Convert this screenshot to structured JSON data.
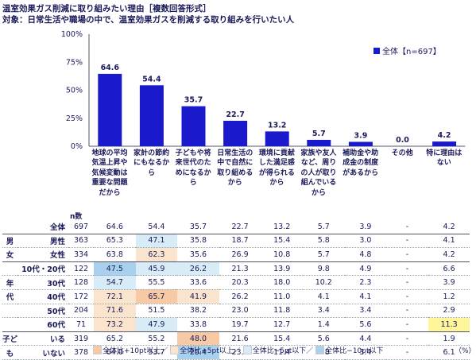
{
  "header": {
    "title": "温室効果ガス削減に取り組みたい理由［複数回答形式］",
    "target": "対象：日常生活や職場の中で、温室効果ガスを削減する取り組みを行いたい人"
  },
  "chart_data": {
    "type": "bar",
    "categories": [
      "地球の平均気温上昇や気候変動は重要な問題だから",
      "家計の節約にもなるから",
      "子どもや将来世代のためになるから",
      "日常生活の中で自然に取り組めるから",
      "環境に貢献した満足感が得られるから",
      "家族や友人など、周りの人が取り組んでいるから",
      "補助金や助成金の制度があるから",
      "その他",
      "特に理由はない"
    ],
    "series": [
      {
        "name": "全体【n=697】",
        "values": [
          64.6,
          54.4,
          35.7,
          22.7,
          13.2,
          5.7,
          3.9,
          0.0,
          4.2
        ]
      }
    ],
    "value_labels": [
      "64.6",
      "54.4",
      "35.7",
      "22.7",
      "13.2",
      "5.7",
      "3.9",
      "0.0",
      "4.2"
    ],
    "yticks": [
      "0%",
      "25%",
      "50%",
      "75%",
      "100%"
    ],
    "ylim": [
      0,
      100
    ],
    "bar_color": "#1a1acc"
  },
  "table": {
    "n_header": "n数",
    "rows": [
      {
        "group": "",
        "sub": "全体",
        "n": "697",
        "vals": [
          "64.6",
          "54.4",
          "35.7",
          "22.7",
          "13.2",
          "5.7",
          "3.9",
          "-",
          "4.2"
        ],
        "hl": [
          "",
          "",
          "",
          "",
          "",
          "",
          "",
          "",
          ""
        ],
        "band": true
      },
      {
        "group": "男",
        "sub": "男性",
        "n": "363",
        "vals": [
          "65.3",
          "47.1",
          "35.8",
          "18.7",
          "15.4",
          "5.8",
          "3.0",
          "-",
          "4.1"
        ],
        "hl": [
          "",
          "lo5",
          "",
          "",
          "",
          "",
          "",
          "",
          ""
        ],
        "band": false
      },
      {
        "group": "女",
        "sub": "女性",
        "n": "334",
        "vals": [
          "63.8",
          "62.3",
          "35.6",
          "26.9",
          "10.8",
          "5.7",
          "4.8",
          "-",
          "4.2"
        ],
        "hl": [
          "",
          "hi5",
          "",
          "",
          "",
          "",
          "",
          "",
          ""
        ],
        "band": true
      },
      {
        "group": "",
        "sub": "10代・20代",
        "n": "122",
        "vals": [
          "47.5",
          "45.9",
          "26.2",
          "21.3",
          "13.9",
          "9.8",
          "4.9",
          "-",
          "6.6"
        ],
        "hl": [
          "lo10",
          "lo5",
          "lo5",
          "",
          "",
          "",
          "",
          "",
          ""
        ],
        "band": false
      },
      {
        "group": "年",
        "sub": "30代",
        "n": "128",
        "vals": [
          "54.7",
          "55.5",
          "33.6",
          "20.3",
          "18.0",
          "10.2",
          "2.3",
          "-",
          "3.9"
        ],
        "hl": [
          "lo5",
          "",
          "",
          "",
          "",
          "",
          "",
          "",
          ""
        ],
        "band": false
      },
      {
        "group": "代",
        "sub": "40代",
        "n": "172",
        "vals": [
          "72.1",
          "65.7",
          "41.9",
          "26.2",
          "11.0",
          "4.1",
          "4.1",
          "-",
          "1.2"
        ],
        "hl": [
          "hi5",
          "hi10",
          "hi5",
          "",
          "",
          "",
          "",
          "",
          ""
        ],
        "band": false
      },
      {
        "group": "",
        "sub": "50代",
        "n": "204",
        "vals": [
          "71.6",
          "51.5",
          "38.2",
          "23.0",
          "11.8",
          "3.4",
          "3.4",
          "-",
          "2.9"
        ],
        "hl": [
          "hi5",
          "",
          "",
          "",
          "",
          "",
          "",
          "",
          ""
        ],
        "band": false
      },
      {
        "group": "",
        "sub": "60代",
        "n": "71",
        "vals": [
          "73.2",
          "47.9",
          "33.8",
          "19.7",
          "12.7",
          "1.4",
          "5.6",
          "-",
          "11.3"
        ],
        "hl": [
          "hi5",
          "lo5",
          "",
          "",
          "",
          "",
          "",
          "",
          "ylow"
        ],
        "band": true
      },
      {
        "group": "子ど",
        "sub": "いる",
        "n": "319",
        "vals": [
          "65.2",
          "55.2",
          "48.0",
          "21.6",
          "15.4",
          "5.6",
          "4.4",
          "-",
          "1.9"
        ],
        "hl": [
          "",
          "",
          "hi10",
          "",
          "",
          "",
          "",
          "",
          ""
        ],
        "band": false
      },
      {
        "group": "も",
        "sub": "いない",
        "n": "378",
        "vals": [
          "64.0",
          "53.7",
          "25.4",
          "23.5",
          "11.4",
          "5.8",
          "3.4",
          "-",
          "6.1"
        ],
        "hl": [
          "",
          "",
          "lo10",
          "",
          "",
          "",
          "",
          "",
          ""
        ],
        "band": false
      }
    ]
  },
  "footer": {
    "items": [
      {
        "label": "全体比+10pt以上／",
        "color": "#f7c9a5"
      },
      {
        "label": "全体比+5pt以上／",
        "color": "#fbe4cd"
      },
      {
        "label": "全体比−5pt以下／",
        "color": "#d7ecf7"
      },
      {
        "label": "全体比−10pt以下",
        "color": "#a9d1ee"
      }
    ],
    "unit": "（%）"
  }
}
